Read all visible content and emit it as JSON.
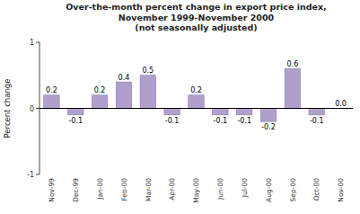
{
  "chart_data": {
    "type": "bar",
    "title": "Over-the-month percent change in export price index,\nNovember 1999-November 2000\n(not seasonally adjusted)",
    "categories": [
      "Nov-99",
      "Dec-99",
      "Jan-00",
      "Feb-00",
      "Mar-00",
      "Apr-00",
      "May-00",
      "Jun-00",
      "Jul-00",
      "Aug-00",
      "Sep-00",
      "Oct-00",
      "Nov-00"
    ],
    "values": [
      0.2,
      -0.1,
      0.2,
      0.4,
      0.5,
      -0.1,
      0.2,
      -0.1,
      -0.1,
      -0.2,
      0.6,
      -0.1,
      0.0
    ],
    "value_labels": [
      "0.2",
      "-0.1",
      "0.2",
      "0.4",
      "0.5",
      "-0.1",
      "0.2",
      "-0.1",
      "-0.1",
      "-0.2",
      "0.6",
      "-0.1",
      "0.0"
    ],
    "data_labels": true,
    "color": "#b09fcc",
    "ylabel": "Percent change",
    "ylim": [
      -1.0,
      1.0
    ],
    "yticks": [
      -1,
      0,
      1
    ],
    "grid": false
  }
}
